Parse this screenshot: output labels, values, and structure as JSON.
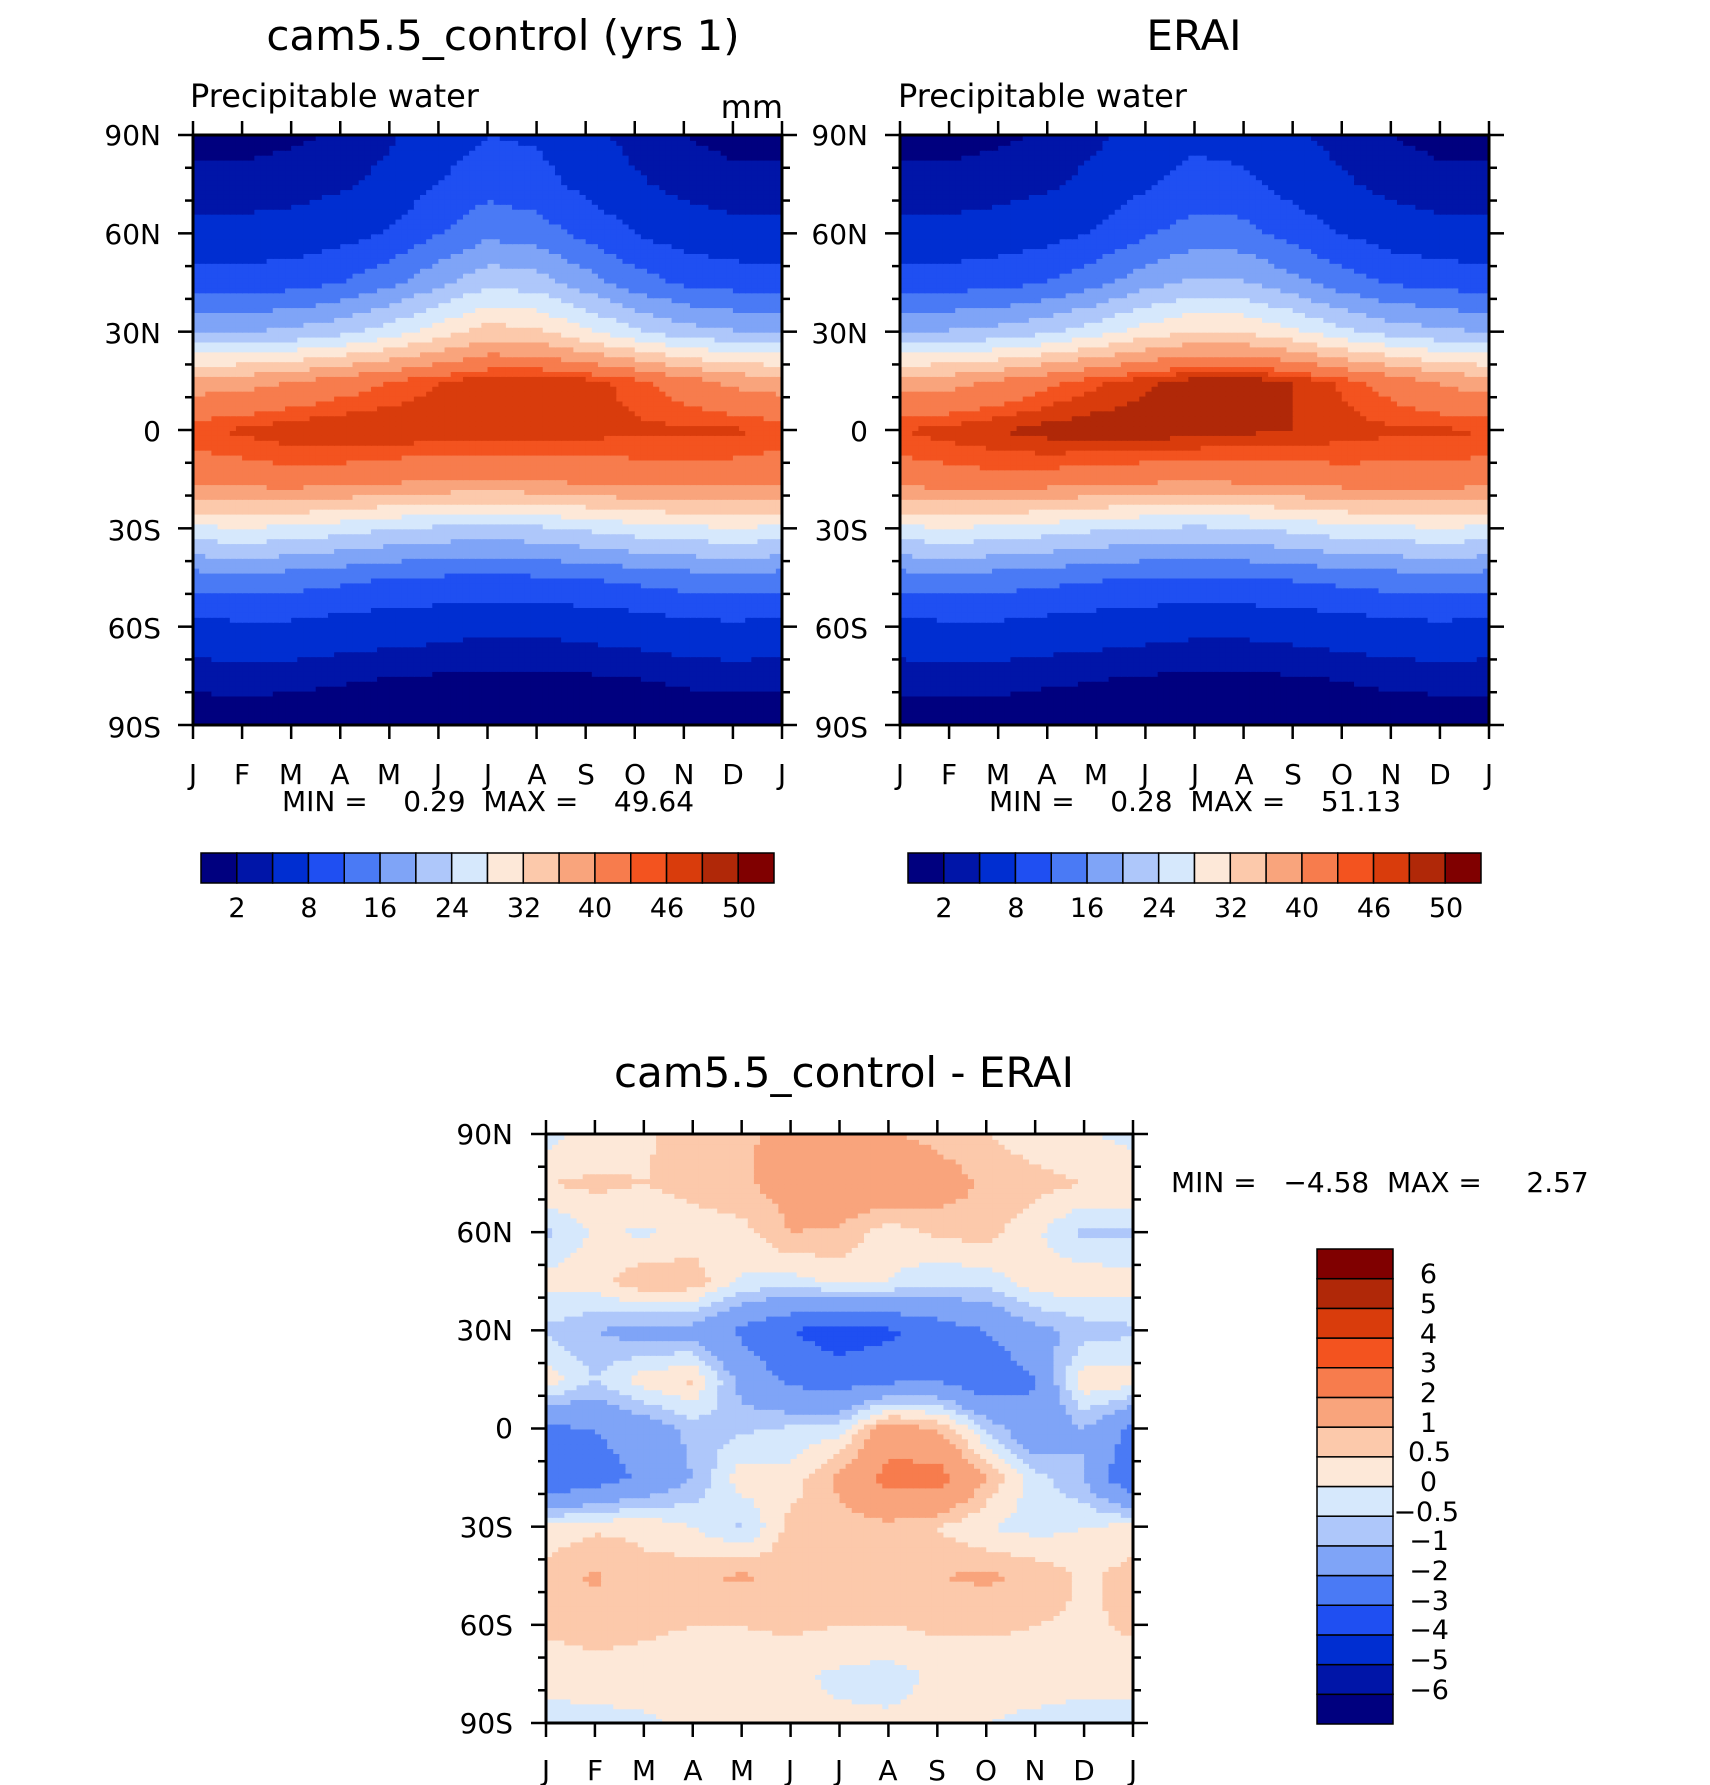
{
  "chart_data": [
    {
      "type": "heatmap",
      "title": "cam5.5_control (yrs 1)",
      "subtitle": "Precipitable water",
      "units": "mm",
      "x_labels": [
        "J",
        "F",
        "M",
        "A",
        "M",
        "J",
        "J",
        "A",
        "S",
        "O",
        "N",
        "D",
        "J"
      ],
      "y_labels": [
        "90N",
        "60N",
        "30N",
        "0",
        "30S",
        "60S",
        "90S"
      ],
      "xlim": [
        0,
        12
      ],
      "ylim": [
        -90,
        90
      ],
      "stats_text": "MIN =    0.29  MAX =    49.64",
      "min": 0.29,
      "max": 49.64,
      "colorbar": {
        "orientation": "horizontal",
        "levels": [
          2,
          4,
          8,
          12,
          16,
          20,
          24,
          28,
          32,
          36,
          40,
          44,
          46,
          48,
          50
        ],
        "level_labels": [
          "2",
          "8",
          "16",
          "24",
          "32",
          "40",
          "46",
          "50"
        ],
        "colors": [
          "#00007f",
          "#0015a8",
          "#002ed1",
          "#1f4ff2",
          "#4a7af5",
          "#7fa4f7",
          "#aec7fa",
          "#d6e8fc",
          "#fde8d8",
          "#fcc9ab",
          "#f9a47c",
          "#f77c4d",
          "#f3531f",
          "#d93c0c",
          "#b02808",
          "#800000"
        ]
      },
      "grid": {
        "months": [
          0,
          1,
          2,
          3,
          4,
          5,
          6,
          7,
          8,
          9,
          10,
          11,
          12
        ],
        "lats": [
          -90,
          -75,
          -60,
          -45,
          -30,
          -15,
          0,
          15,
          30,
          45,
          60,
          75,
          90
        ],
        "values": [
          [
            1.0,
            1.0,
            1.0,
            1.0,
            1.0,
            1.0,
            1.0,
            1.0,
            1.0,
            1.0,
            1.0,
            1.0,
            1.0
          ],
          [
            2.5,
            2.6,
            2.5,
            2.2,
            2.0,
            1.8,
            1.6,
            1.6,
            1.8,
            2.0,
            2.3,
            2.5,
            2.5
          ],
          [
            6.5,
            7.0,
            7.0,
            6.0,
            5.5,
            5.0,
            4.5,
            4.5,
            5.0,
            5.5,
            6.5,
            7.0,
            6.5
          ],
          [
            14.0,
            14.5,
            14.0,
            13.0,
            12.0,
            11.5,
            11.0,
            11.5,
            12.0,
            13.0,
            14.0,
            14.5,
            14.0
          ],
          [
            27.0,
            27.5,
            27.0,
            25.5,
            24.0,
            23.0,
            22.5,
            23.0,
            24.5,
            26.0,
            27.0,
            27.5,
            27.0
          ],
          [
            41.5,
            42.0,
            42.5,
            42.0,
            41.0,
            40.5,
            40.0,
            40.5,
            41.0,
            42.0,
            42.0,
            42.0,
            41.5
          ],
          [
            45.5,
            46.5,
            47.5,
            48.0,
            48.0,
            47.5,
            47.5,
            47.5,
            47.0,
            46.5,
            46.5,
            46.5,
            45.5
          ],
          [
            38.0,
            38.5,
            40.0,
            42.0,
            44.0,
            46.0,
            47.5,
            48.0,
            47.0,
            45.0,
            42.0,
            39.0,
            38.0
          ],
          [
            20.0,
            20.0,
            21.0,
            23.0,
            26.0,
            30.0,
            34.0,
            33.0,
            29.0,
            25.0,
            22.0,
            20.5,
            20.0
          ],
          [
            10.0,
            10.0,
            10.5,
            12.0,
            15.0,
            19.0,
            23.0,
            22.0,
            18.0,
            14.0,
            11.5,
            10.5,
            10.0
          ],
          [
            5.0,
            5.0,
            5.5,
            6.5,
            8.5,
            12.0,
            15.0,
            14.0,
            11.0,
            8.0,
            6.0,
            5.0,
            5.0
          ],
          [
            2.5,
            2.5,
            2.8,
            3.5,
            5.0,
            8.0,
            10.5,
            9.5,
            7.0,
            4.5,
            3.0,
            2.5,
            2.5
          ],
          [
            1.5,
            1.5,
            1.7,
            2.2,
            3.5,
            6.0,
            8.0,
            7.5,
            5.0,
            3.0,
            2.0,
            1.5,
            1.5
          ]
        ]
      }
    },
    {
      "type": "heatmap",
      "title": "ERAI",
      "subtitle": "Precipitable water",
      "x_labels": [
        "J",
        "F",
        "M",
        "A",
        "M",
        "J",
        "J",
        "A",
        "S",
        "O",
        "N",
        "D",
        "J"
      ],
      "y_labels": [
        "90N",
        "60N",
        "30N",
        "0",
        "30S",
        "60S",
        "90S"
      ],
      "xlim": [
        0,
        12
      ],
      "ylim": [
        -90,
        90
      ],
      "stats_text": "MIN =    0.28  MAX =    51.13",
      "min": 0.28,
      "max": 51.13,
      "colorbar": {
        "orientation": "horizontal",
        "levels": [
          2,
          4,
          8,
          12,
          16,
          20,
          24,
          28,
          32,
          36,
          40,
          44,
          46,
          48,
          50
        ],
        "level_labels": [
          "2",
          "8",
          "16",
          "24",
          "32",
          "40",
          "46",
          "50"
        ],
        "colors": [
          "#00007f",
          "#0015a8",
          "#002ed1",
          "#1f4ff2",
          "#4a7af5",
          "#7fa4f7",
          "#aec7fa",
          "#d6e8fc",
          "#fde8d8",
          "#fcc9ab",
          "#f9a47c",
          "#f77c4d",
          "#f3531f",
          "#d93c0c",
          "#b02808",
          "#800000"
        ]
      },
      "grid": {
        "months": [
          0,
          1,
          2,
          3,
          4,
          5,
          6,
          7,
          8,
          9,
          10,
          11,
          12
        ],
        "lats": [
          -90,
          -75,
          -60,
          -45,
          -30,
          -15,
          0,
          15,
          30,
          45,
          60,
          75,
          90
        ],
        "values": [
          [
            1.0,
            1.0,
            1.0,
            1.0,
            1.0,
            1.0,
            1.0,
            1.0,
            1.0,
            1.0,
            1.0,
            1.0,
            1.0
          ],
          [
            2.6,
            2.7,
            2.6,
            2.3,
            2.1,
            1.9,
            1.7,
            1.7,
            1.9,
            2.1,
            2.4,
            2.6,
            2.6
          ],
          [
            6.5,
            7.0,
            7.0,
            6.2,
            5.6,
            5.1,
            4.7,
            4.7,
            5.1,
            5.7,
            6.6,
            7.0,
            6.5
          ],
          [
            14.0,
            14.5,
            14.0,
            13.2,
            12.4,
            11.8,
            11.4,
            11.8,
            12.4,
            13.3,
            14.0,
            14.5,
            14.0
          ],
          [
            27.0,
            27.5,
            27.0,
            25.8,
            24.5,
            23.5,
            23.0,
            23.5,
            24.8,
            26.2,
            27.0,
            27.5,
            27.0
          ],
          [
            42.0,
            42.5,
            43.0,
            42.5,
            41.5,
            41.0,
            40.5,
            41.0,
            41.5,
            42.5,
            42.5,
            42.5,
            42.0
          ],
          [
            46.0,
            47.0,
            48.0,
            49.0,
            49.5,
            49.5,
            49.0,
            48.5,
            48.0,
            47.0,
            46.5,
            46.5,
            46.0
          ],
          [
            38.0,
            38.5,
            40.5,
            43.0,
            45.5,
            47.5,
            49.0,
            49.5,
            48.0,
            45.5,
            42.5,
            39.5,
            38.0
          ],
          [
            20.0,
            20.5,
            21.5,
            23.5,
            26.5,
            30.0,
            32.5,
            32.0,
            29.0,
            25.5,
            22.5,
            21.0,
            20.0
          ],
          [
            10.0,
            10.2,
            10.8,
            12.2,
            15.0,
            18.5,
            21.0,
            20.5,
            17.5,
            14.0,
            11.7,
            10.7,
            10.0
          ],
          [
            5.0,
            5.0,
            5.6,
            6.6,
            8.5,
            11.5,
            14.0,
            13.5,
            10.5,
            8.0,
            6.0,
            5.0,
            5.0
          ],
          [
            2.5,
            2.5,
            2.8,
            3.5,
            5.0,
            7.5,
            9.5,
            9.0,
            6.5,
            4.5,
            3.0,
            2.5,
            2.5
          ],
          [
            1.5,
            1.5,
            1.7,
            2.2,
            3.4,
            5.5,
            7.0,
            6.5,
            4.5,
            3.0,
            2.0,
            1.5,
            1.5
          ]
        ]
      }
    },
    {
      "type": "heatmap",
      "title": "cam5.5_control - ERAI",
      "x_labels": [
        "J",
        "F",
        "M",
        "A",
        "M",
        "J",
        "J",
        "A",
        "S",
        "O",
        "N",
        "D",
        "J"
      ],
      "y_labels": [
        "90N",
        "60N",
        "30N",
        "0",
        "30S",
        "60S",
        "90S"
      ],
      "xlim": [
        0,
        12
      ],
      "ylim": [
        -90,
        90
      ],
      "stats_text": "MIN =   −4.58  MAX =     2.57",
      "min": -4.58,
      "max": 2.57,
      "colorbar": {
        "orientation": "vertical",
        "levels": [
          -6,
          -5,
          -4,
          -3,
          -2,
          -1,
          -0.5,
          0,
          0.5,
          1,
          2,
          3,
          4,
          5,
          6
        ],
        "level_labels": [
          "−6",
          "−5",
          "−4",
          "−3",
          "−2",
          "−1",
          "−0.5",
          "0",
          "0.5",
          "1",
          "2",
          "3",
          "4",
          "5",
          "6"
        ],
        "colors": [
          "#00007f",
          "#0015a8",
          "#002ed1",
          "#1f4ff2",
          "#4a7af5",
          "#7fa4f7",
          "#aec7fa",
          "#d6e8fc",
          "#fde8d8",
          "#fcc9ab",
          "#f9a47c",
          "#f77c4d",
          "#f3531f",
          "#d93c0c",
          "#b02808",
          "#800000"
        ]
      },
      "grid": {
        "months": [
          0,
          1,
          2,
          3,
          4,
          5,
          6,
          7,
          8,
          9,
          10,
          11,
          12
        ],
        "lats": [
          -90,
          -75,
          -60,
          -45,
          -30,
          -15,
          0,
          15,
          30,
          45,
          60,
          75,
          90
        ],
        "values": [
          [
            -0.2,
            -0.2,
            -0.1,
            0.1,
            0.1,
            0.1,
            0.1,
            0.1,
            0.1,
            0.0,
            -0.1,
            -0.2,
            -0.2
          ],
          [
            0.2,
            0.3,
            0.3,
            0.2,
            0.2,
            0.1,
            -0.1,
            -0.2,
            0.1,
            0.2,
            0.2,
            0.2,
            0.2
          ],
          [
            0.6,
            0.7,
            0.6,
            0.5,
            0.5,
            0.6,
            0.5,
            0.5,
            0.6,
            0.6,
            0.5,
            0.4,
            0.6
          ],
          [
            0.7,
            1.1,
            0.6,
            0.9,
            1.1,
            0.8,
            0.8,
            0.7,
            1.0,
            1.1,
            0.9,
            0.4,
            0.7
          ],
          [
            0.2,
            0.4,
            0.4,
            0.0,
            -0.6,
            0.7,
            0.7,
            0.8,
            0.5,
            0.0,
            -0.2,
            0.0,
            0.2
          ],
          [
            -3.0,
            -2.5,
            -1.8,
            -1.0,
            0.3,
            0.2,
            1.2,
            2.3,
            2.5,
            1.0,
            -0.3,
            -1.0,
            -3.0
          ],
          [
            -2.2,
            -2.0,
            -1.5,
            -0.8,
            -0.6,
            -0.4,
            -0.2,
            1.5,
            1.0,
            -0.5,
            -1.8,
            -1.0,
            -2.2
          ],
          [
            0.3,
            -0.5,
            0.3,
            0.6,
            -1.3,
            -2.2,
            -2.5,
            -2.2,
            -2.0,
            -2.8,
            -2.0,
            0.4,
            0.3
          ],
          [
            -0.6,
            -1.0,
            -1.3,
            -1.3,
            -2.2,
            -3.0,
            -3.5,
            -3.2,
            -2.5,
            -2.0,
            -1.2,
            -0.8,
            -0.6
          ],
          [
            0.2,
            0.3,
            0.9,
            0.8,
            -0.1,
            -0.2,
            0.1,
            0.0,
            -0.4,
            -0.3,
            0.3,
            0.4,
            0.2
          ],
          [
            -0.6,
            0.1,
            -0.1,
            0.2,
            0.3,
            1.0,
            0.9,
            0.2,
            0.6,
            0.7,
            0.1,
            -0.6,
            -0.6
          ],
          [
            0.5,
            0.6,
            0.5,
            0.7,
            0.9,
            1.3,
            1.6,
            1.7,
            1.4,
            0.9,
            0.7,
            0.5,
            0.5
          ],
          [
            -0.2,
            0.2,
            0.4,
            0.8,
            0.9,
            1.2,
            1.3,
            1.1,
            0.8,
            0.5,
            0.2,
            0.1,
            -0.2
          ]
        ]
      }
    }
  ]
}
